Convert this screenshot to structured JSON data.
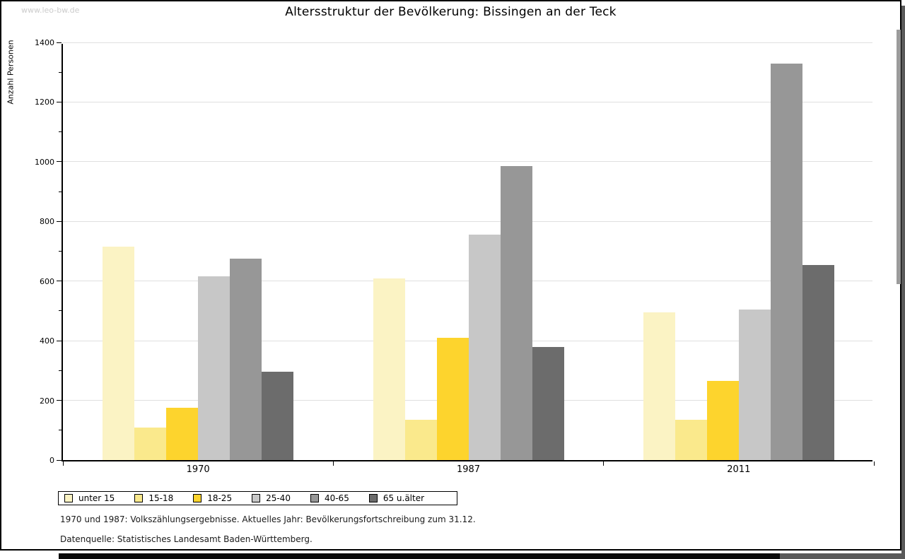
{
  "page": {
    "watermark": "www.leo-bw.de",
    "title": "Altersstruktur der Bevölkerung: Bissingen an der Teck",
    "footnote1": "1970 und 1987: Volkszählungsergebnisse. Aktuelles Jahr: Bevölkerungsfortschreibung zum 31.12.",
    "footnote2": "Datenquelle: Statistisches Landesamt Baden-Württemberg."
  },
  "chart_data": {
    "type": "bar",
    "title": "Altersstruktur der Bevölkerung: Bissingen an der Teck",
    "xlabel": "",
    "ylabel": "Anzahl Personen",
    "ylim": [
      0,
      1400
    ],
    "ytick_step": 200,
    "yminor_step": 100,
    "grid": true,
    "grid_color": "#e0e0e0",
    "legend_position": "bottom",
    "categories": [
      "1970",
      "1987",
      "2011"
    ],
    "series": [
      {
        "name": "unter 15",
        "color": "#fbf3c4",
        "values": [
          715,
          610,
          495
        ]
      },
      {
        "name": "15-18",
        "color": "#fae98c",
        "values": [
          110,
          135,
          135
        ]
      },
      {
        "name": "18-25",
        "color": "#fdd42d",
        "values": [
          175,
          410,
          265
        ]
      },
      {
        "name": "25-40",
        "color": "#c7c7c7",
        "values": [
          615,
          755,
          505
        ]
      },
      {
        "name": "40-65",
        "color": "#979797",
        "values": [
          675,
          985,
          1330
        ]
      },
      {
        "name": "65 u.älter",
        "color": "#6c6c6c",
        "values": [
          295,
          380,
          655
        ]
      }
    ]
  }
}
